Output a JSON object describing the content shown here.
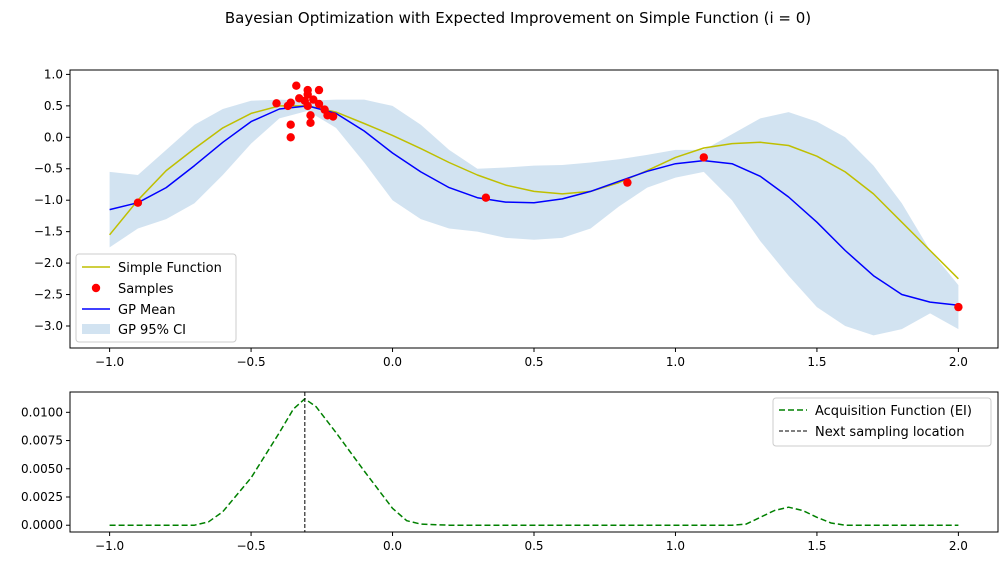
{
  "figure_title": "Bayesian Optimization with Expected Improvement on Simple Function (i = 0)",
  "chart_data": [
    {
      "type": "line",
      "panel": "top",
      "xlim": [
        -1.14,
        2.14
      ],
      "ylim": [
        -3.35,
        1.07
      ],
      "x_ticks": [
        -1.0,
        -0.5,
        0.0,
        0.5,
        1.0,
        1.5,
        2.0
      ],
      "x_tick_labels": [
        "−1.0",
        "−0.5",
        "0.0",
        "0.5",
        "1.0",
        "1.5",
        "2.0"
      ],
      "y_ticks": [
        1.0,
        0.5,
        0.0,
        -0.5,
        -1.0,
        -1.5,
        -2.0,
        -2.5,
        -3.0
      ],
      "y_tick_labels": [
        "1.0",
        "0.5",
        "0.0",
        "−0.5",
        "−1.0",
        "−1.5",
        "−2.0",
        "−2.5",
        "−3.0"
      ],
      "grid": false,
      "legend_position": "lower-left",
      "series": [
        {
          "name": "Simple Function",
          "kind": "line",
          "color": "#bfbf00",
          "x": [
            -1.0,
            -0.9,
            -0.8,
            -0.7,
            -0.6,
            -0.5,
            -0.4,
            -0.3,
            -0.2,
            -0.1,
            0.0,
            0.1,
            0.2,
            0.3,
            0.4,
            0.5,
            0.6,
            0.7,
            0.8,
            0.9,
            1.0,
            1.1,
            1.2,
            1.3,
            1.4,
            1.5,
            1.6,
            1.7,
            1.8,
            1.9,
            2.0
          ],
          "y": [
            -1.55,
            -1.0,
            -0.53,
            -0.18,
            0.15,
            0.38,
            0.5,
            0.5,
            0.4,
            0.22,
            0.03,
            -0.18,
            -0.4,
            -0.6,
            -0.76,
            -0.86,
            -0.9,
            -0.86,
            -0.72,
            -0.53,
            -0.32,
            -0.17,
            -0.1,
            -0.08,
            -0.13,
            -0.3,
            -0.55,
            -0.9,
            -1.35,
            -1.8,
            -2.25
          ]
        },
        {
          "name": "Samples",
          "kind": "scatter",
          "color": "#ff0000",
          "x": [
            -0.9,
            -0.41,
            -0.37,
            -0.36,
            -0.36,
            -0.36,
            -0.34,
            -0.33,
            -0.31,
            -0.3,
            -0.3,
            -0.3,
            -0.29,
            -0.29,
            -0.28,
            -0.26,
            -0.26,
            -0.24,
            -0.23,
            -0.21,
            0.33,
            0.83,
            1.1,
            2.0
          ],
          "y": [
            -1.04,
            0.54,
            0.5,
            0.55,
            0.2,
            0.0,
            0.82,
            0.62,
            0.58,
            0.75,
            0.68,
            0.5,
            0.35,
            0.23,
            0.6,
            0.53,
            0.75,
            0.44,
            0.35,
            0.33,
            -0.96,
            -0.72,
            -0.32,
            -2.7
          ]
        },
        {
          "name": "GP Mean",
          "kind": "line",
          "color": "#0000ff",
          "x": [
            -1.0,
            -0.9,
            -0.8,
            -0.7,
            -0.6,
            -0.5,
            -0.4,
            -0.3,
            -0.2,
            -0.1,
            0.0,
            0.1,
            0.2,
            0.3,
            0.4,
            0.5,
            0.6,
            0.7,
            0.8,
            0.9,
            1.0,
            1.1,
            1.2,
            1.3,
            1.4,
            1.5,
            1.6,
            1.7,
            1.8,
            1.9,
            2.0
          ],
          "y": [
            -1.15,
            -1.04,
            -0.8,
            -0.45,
            -0.08,
            0.25,
            0.45,
            0.5,
            0.38,
            0.1,
            -0.25,
            -0.55,
            -0.8,
            -0.96,
            -1.03,
            -1.04,
            -0.98,
            -0.86,
            -0.7,
            -0.54,
            -0.42,
            -0.37,
            -0.42,
            -0.62,
            -0.95,
            -1.35,
            -1.8,
            -2.2,
            -2.5,
            -2.62,
            -2.67
          ]
        },
        {
          "name": "GP 95% CI",
          "kind": "band",
          "color": "#c3d9ec",
          "x": [
            -1.0,
            -0.9,
            -0.8,
            -0.7,
            -0.6,
            -0.5,
            -0.4,
            -0.3,
            -0.2,
            -0.1,
            0.0,
            0.1,
            0.2,
            0.3,
            0.4,
            0.5,
            0.6,
            0.7,
            0.8,
            0.9,
            1.0,
            1.1,
            1.2,
            1.3,
            1.4,
            1.5,
            1.6,
            1.7,
            1.8,
            1.9,
            2.0
          ],
          "upper": [
            -0.55,
            -0.6,
            -0.2,
            0.2,
            0.45,
            0.58,
            0.6,
            0.58,
            0.6,
            0.6,
            0.5,
            0.2,
            -0.2,
            -0.5,
            -0.48,
            -0.45,
            -0.44,
            -0.4,
            -0.35,
            -0.28,
            -0.2,
            -0.2,
            0.05,
            0.3,
            0.4,
            0.25,
            0.0,
            -0.45,
            -1.05,
            -1.8,
            -2.35
          ],
          "lower": [
            -1.75,
            -1.45,
            -1.3,
            -1.05,
            -0.6,
            -0.1,
            0.3,
            0.42,
            0.15,
            -0.4,
            -1.0,
            -1.3,
            -1.45,
            -1.5,
            -1.6,
            -1.63,
            -1.6,
            -1.45,
            -1.1,
            -0.8,
            -0.64,
            -0.55,
            -1.0,
            -1.65,
            -2.2,
            -2.7,
            -3.0,
            -3.15,
            -3.05,
            -2.8,
            -3.05
          ]
        }
      ],
      "legend_entries": [
        "Simple Function",
        "Samples",
        "GP Mean",
        "GP 95% CI"
      ]
    },
    {
      "type": "line",
      "panel": "bottom",
      "xlim": [
        -1.14,
        2.14
      ],
      "ylim": [
        -0.0006,
        0.0118
      ],
      "x_ticks": [
        -1.0,
        -0.5,
        0.0,
        0.5,
        1.0,
        1.5,
        2.0
      ],
      "x_tick_labels": [
        "−1.0",
        "−0.5",
        "0.0",
        "0.5",
        "1.0",
        "1.5",
        "2.0"
      ],
      "y_ticks": [
        0.01,
        0.0075,
        0.005,
        0.0025,
        0.0
      ],
      "y_tick_labels": [
        "0.0100",
        "0.0075",
        "0.0050",
        "0.0025",
        "0.0000"
      ],
      "grid": false,
      "legend_position": "upper-right",
      "series": [
        {
          "name": "Acquisition Function (EI)",
          "kind": "dashed-line",
          "color": "#008000",
          "x": [
            -1.0,
            -0.8,
            -0.7,
            -0.65,
            -0.6,
            -0.5,
            -0.4,
            -0.35,
            -0.31,
            -0.27,
            -0.2,
            -0.1,
            0.0,
            0.05,
            0.1,
            0.2,
            0.5,
            1.0,
            1.2,
            1.25,
            1.3,
            1.35,
            1.4,
            1.45,
            1.5,
            1.55,
            1.6,
            2.0
          ],
          "y": [
            0.0,
            0.0,
            0.0,
            0.0003,
            0.0012,
            0.0042,
            0.0082,
            0.0103,
            0.0112,
            0.0105,
            0.0082,
            0.0048,
            0.0015,
            0.0004,
            0.0001,
            0.0,
            0.0,
            0.0,
            0.0,
            0.0001,
            0.0007,
            0.0013,
            0.0016,
            0.0013,
            0.0007,
            0.0002,
            0.0,
            0.0
          ]
        },
        {
          "name": "Next sampling location",
          "kind": "vline",
          "color": "#000000",
          "x": -0.31
        }
      ],
      "legend_entries": [
        "Acquisition Function (EI)",
        "Next sampling location"
      ]
    }
  ]
}
